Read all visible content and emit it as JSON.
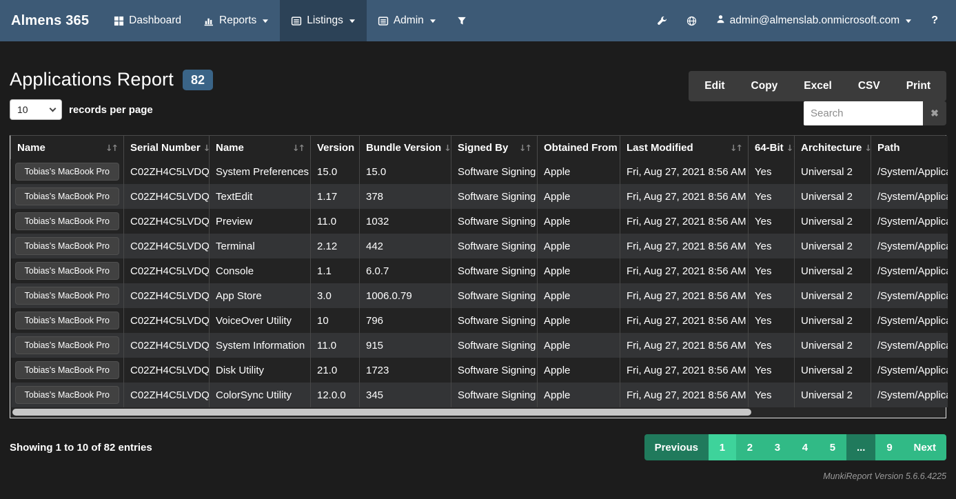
{
  "navbar": {
    "brand": "Almens 365",
    "items": [
      {
        "label": "Dashboard",
        "icon": "grid-icon",
        "caret": false,
        "state": ""
      },
      {
        "label": "Reports",
        "icon": "bar-chart-icon",
        "caret": true,
        "state": ""
      },
      {
        "label": "Listings",
        "icon": "list-icon",
        "caret": true,
        "state": "active"
      },
      {
        "label": "Admin",
        "icon": "list-icon",
        "caret": true,
        "state": ""
      }
    ],
    "user_label": "admin@almenslab.onmicrosoft.com",
    "help_label": "?"
  },
  "header": {
    "title": "Applications Report",
    "count_badge": "82"
  },
  "toolbar": {
    "export_buttons": [
      {
        "label": "Edit"
      },
      {
        "label": "Copy"
      },
      {
        "label": "Excel"
      },
      {
        "label": "CSV"
      },
      {
        "label": "Print"
      }
    ],
    "records_per_page": {
      "selected": "10",
      "label": "records per page"
    },
    "search": {
      "placeholder": "Search",
      "clear_icon": "✖"
    }
  },
  "table": {
    "columns": [
      {
        "label": "Name",
        "sortable": true
      },
      {
        "label": "Serial Number",
        "sortable": true
      },
      {
        "label": "Name",
        "sortable": true
      },
      {
        "label": "Version",
        "sortable": true
      },
      {
        "label": "Bundle Version",
        "sortable": true
      },
      {
        "label": "Signed By",
        "sortable": true
      },
      {
        "label": "Obtained From",
        "sortable": true
      },
      {
        "label": "Last Modified",
        "sortable": true
      },
      {
        "label": "64-Bit",
        "sortable": true
      },
      {
        "label": "Architecture",
        "sortable": true
      },
      {
        "label": "Path",
        "sortable": false
      }
    ],
    "rows": [
      {
        "device": "Tobias’s MacBook Pro",
        "serial": "C02ZH4C5LVDQ",
        "app": "System Preferences",
        "version": "15.0",
        "bundle_version": "15.0",
        "signed_by": "Software Signing",
        "obtained_from": "Apple",
        "last_modified": "Fri, Aug 27, 2021 8:56 AM",
        "bit64": "Yes",
        "architecture": "Universal 2",
        "path": "/System/Applica"
      },
      {
        "device": "Tobias’s MacBook Pro",
        "serial": "C02ZH4C5LVDQ",
        "app": "TextEdit",
        "version": "1.17",
        "bundle_version": "378",
        "signed_by": "Software Signing",
        "obtained_from": "Apple",
        "last_modified": "Fri, Aug 27, 2021 8:56 AM",
        "bit64": "Yes",
        "architecture": "Universal 2",
        "path": "/System/Applica"
      },
      {
        "device": "Tobias’s MacBook Pro",
        "serial": "C02ZH4C5LVDQ",
        "app": "Preview",
        "version": "11.0",
        "bundle_version": "1032",
        "signed_by": "Software Signing",
        "obtained_from": "Apple",
        "last_modified": "Fri, Aug 27, 2021 8:56 AM",
        "bit64": "Yes",
        "architecture": "Universal 2",
        "path": "/System/Applica"
      },
      {
        "device": "Tobias’s MacBook Pro",
        "serial": "C02ZH4C5LVDQ",
        "app": "Terminal",
        "version": "2.12",
        "bundle_version": "442",
        "signed_by": "Software Signing",
        "obtained_from": "Apple",
        "last_modified": "Fri, Aug 27, 2021 8:56 AM",
        "bit64": "Yes",
        "architecture": "Universal 2",
        "path": "/System/Applica"
      },
      {
        "device": "Tobias’s MacBook Pro",
        "serial": "C02ZH4C5LVDQ",
        "app": "Console",
        "version": "1.1",
        "bundle_version": "6.0.7",
        "signed_by": "Software Signing",
        "obtained_from": "Apple",
        "last_modified": "Fri, Aug 27, 2021 8:56 AM",
        "bit64": "Yes",
        "architecture": "Universal 2",
        "path": "/System/Applica"
      },
      {
        "device": "Tobias’s MacBook Pro",
        "serial": "C02ZH4C5LVDQ",
        "app": "App Store",
        "version": "3.0",
        "bundle_version": "1006.0.79",
        "signed_by": "Software Signing",
        "obtained_from": "Apple",
        "last_modified": "Fri, Aug 27, 2021 8:56 AM",
        "bit64": "Yes",
        "architecture": "Universal 2",
        "path": "/System/Applica"
      },
      {
        "device": "Tobias’s MacBook Pro",
        "serial": "C02ZH4C5LVDQ",
        "app": "VoiceOver Utility",
        "version": "10",
        "bundle_version": "796",
        "signed_by": "Software Signing",
        "obtained_from": "Apple",
        "last_modified": "Fri, Aug 27, 2021 8:56 AM",
        "bit64": "Yes",
        "architecture": "Universal 2",
        "path": "/System/Applica"
      },
      {
        "device": "Tobias’s MacBook Pro",
        "serial": "C02ZH4C5LVDQ",
        "app": "System Information",
        "version": "11.0",
        "bundle_version": "915",
        "signed_by": "Software Signing",
        "obtained_from": "Apple",
        "last_modified": "Fri, Aug 27, 2021 8:56 AM",
        "bit64": "Yes",
        "architecture": "Universal 2",
        "path": "/System/Applica"
      },
      {
        "device": "Tobias’s MacBook Pro",
        "serial": "C02ZH4C5LVDQ",
        "app": "Disk Utility",
        "version": "21.0",
        "bundle_version": "1723",
        "signed_by": "Software Signing",
        "obtained_from": "Apple",
        "last_modified": "Fri, Aug 27, 2021 8:56 AM",
        "bit64": "Yes",
        "architecture": "Universal 2",
        "path": "/System/Applica"
      },
      {
        "device": "Tobias’s MacBook Pro",
        "serial": "C02ZH4C5LVDQ",
        "app": "ColorSync Utility",
        "version": "12.0.0",
        "bundle_version": "345",
        "signed_by": "Software Signing",
        "obtained_from": "Apple",
        "last_modified": "Fri, Aug 27, 2021 8:56 AM",
        "bit64": "Yes",
        "architecture": "Universal 2",
        "path": "/System/Applica"
      }
    ]
  },
  "footer": {
    "showing_text": "Showing 1 to 10 of 82 entries",
    "pagination": [
      {
        "label": "Previous",
        "state": "disabled"
      },
      {
        "label": "1",
        "state": "active"
      },
      {
        "label": "2",
        "state": ""
      },
      {
        "label": "3",
        "state": ""
      },
      {
        "label": "4",
        "state": ""
      },
      {
        "label": "5",
        "state": ""
      },
      {
        "label": "...",
        "state": "disabled"
      },
      {
        "label": "9",
        "state": ""
      },
      {
        "label": "Next",
        "state": ""
      }
    ],
    "version_text": "MunkiReport Version 5.6.6.4225"
  },
  "colors": {
    "navbar_bg": "#3d5a76",
    "navbar_active_bg": "#2c4257",
    "page_bg": "#1c1c1c",
    "badge_bg": "#3a6487",
    "panel_bg": "#3b3b3b",
    "row_odd": "#333436",
    "row_even": "#232323",
    "pagination_green": "#31ba86",
    "pagination_active_green": "#3ed39b",
    "pagination_disabled_green": "#207a5c"
  }
}
